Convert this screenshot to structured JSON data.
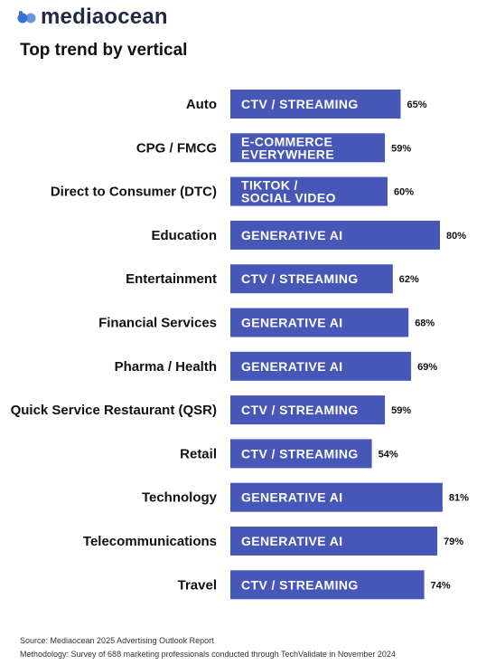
{
  "brand": {
    "name": "mediaocean",
    "logo_color": "#3b6fd4"
  },
  "title": "Top trend by vertical",
  "colors": {
    "bar": "#4757b8",
    "bar_text": "#ffffff",
    "text": "#111111"
  },
  "chart_data": {
    "type": "bar",
    "orientation": "horizontal",
    "title": "Top trend by vertical",
    "xlabel": "",
    "ylabel": "",
    "grid": false,
    "categories": [
      "Auto",
      "CPG / FMCG",
      "Direct to Consumer (DTC)",
      "Education",
      "Entertainment",
      "Financial Services",
      "Pharma / Health",
      "Quick Service Restaurant (QSR)",
      "Retail",
      "Technology",
      "Telecommunications",
      "Travel"
    ],
    "bar_labels": [
      [
        "CTV / STREAMING"
      ],
      [
        "E-COMMERCE",
        "EVERYWHERE"
      ],
      [
        "TIKTOK /",
        "SOCIAL VIDEO"
      ],
      [
        "GENERATIVE AI"
      ],
      [
        "CTV / STREAMING"
      ],
      [
        "GENERATIVE AI"
      ],
      [
        "GENERATIVE AI"
      ],
      [
        "CTV / STREAMING"
      ],
      [
        "CTV / STREAMING"
      ],
      [
        "GENERATIVE AI"
      ],
      [
        "GENERATIVE AI"
      ],
      [
        "CTV / STREAMING"
      ]
    ],
    "values": [
      65,
      59,
      60,
      80,
      62,
      68,
      69,
      59,
      54,
      81,
      79,
      74
    ],
    "value_labels": [
      "65%",
      "59%",
      "60%",
      "80%",
      "62%",
      "68%",
      "69%",
      "59%",
      "54%",
      "81%",
      "79%",
      "74%"
    ]
  },
  "footer": {
    "source": "Source: Mediaocean 2025 Advertising Outlook Report",
    "methodology": "Methodology: Survey of 688 marketing professionals conducted through TechValidate in November 2024"
  }
}
